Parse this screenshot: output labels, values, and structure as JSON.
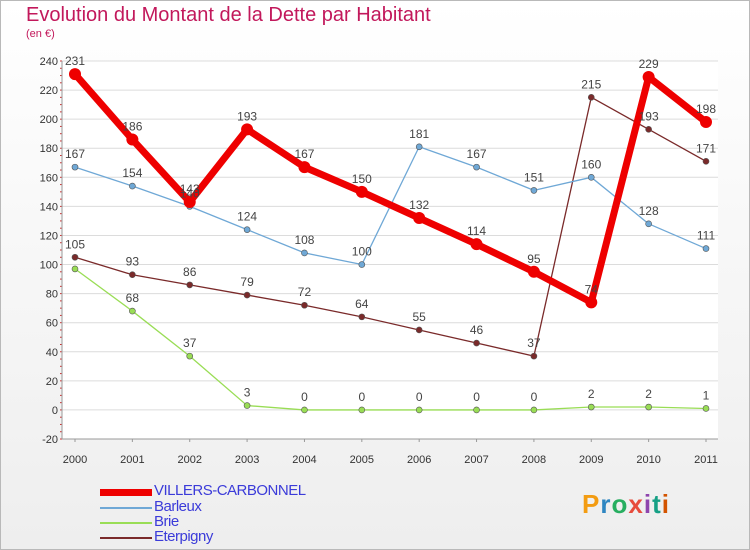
{
  "title": "Evolution du Montant de la Dette par Habitant",
  "subtitle": "(en €)",
  "logo": {
    "text": "Proxiti",
    "colors": [
      "#f39c12",
      "#2e86c1",
      "#27ae60",
      "#e74c3c",
      "#8e44ad",
      "#16a085",
      "#d35400"
    ]
  },
  "chart_data": {
    "type": "line",
    "x": [
      "2000",
      "2001",
      "2002",
      "2003",
      "2004",
      "2005",
      "2006",
      "2007",
      "2008",
      "2009",
      "2010",
      "2011"
    ],
    "ylim": [
      -20,
      240
    ],
    "yticks": [
      -20,
      0,
      20,
      40,
      60,
      80,
      100,
      120,
      140,
      160,
      180,
      200,
      220,
      240
    ],
    "grid": true,
    "legend_position": "bottom-left",
    "series": [
      {
        "name": "VILLERS-CARBONNEL",
        "color": "#ee0000",
        "values": [
          231,
          186,
          143,
          193,
          167,
          150,
          132,
          114,
          95,
          74,
          229,
          198
        ]
      },
      {
        "name": "Barleux",
        "color": "#6fa8d6",
        "values": [
          167,
          154,
          140,
          124,
          108,
          100,
          181,
          167,
          151,
          160,
          128,
          111
        ]
      },
      {
        "name": "Brie",
        "color": "#99dd55",
        "values": [
          97,
          68,
          37,
          3,
          0,
          0,
          0,
          0,
          0,
          2,
          2,
          1
        ]
      },
      {
        "name": "Eterpigny",
        "color": "#7a2a2a",
        "values": [
          105,
          93,
          86,
          79,
          72,
          64,
          55,
          46,
          37,
          215,
          193,
          171
        ]
      }
    ],
    "labels": [
      [
        231,
        186,
        143,
        193,
        167,
        150,
        132,
        114,
        95,
        74,
        229,
        198
      ],
      [
        167,
        154,
        140,
        124,
        108,
        100,
        181,
        167,
        151,
        160,
        128,
        111
      ],
      [
        null,
        68,
        37,
        3,
        0,
        0,
        0,
        0,
        0,
        2,
        2,
        1
      ],
      [
        105,
        93,
        86,
        79,
        72,
        64,
        55,
        46,
        37,
        215,
        193,
        171
      ]
    ]
  }
}
